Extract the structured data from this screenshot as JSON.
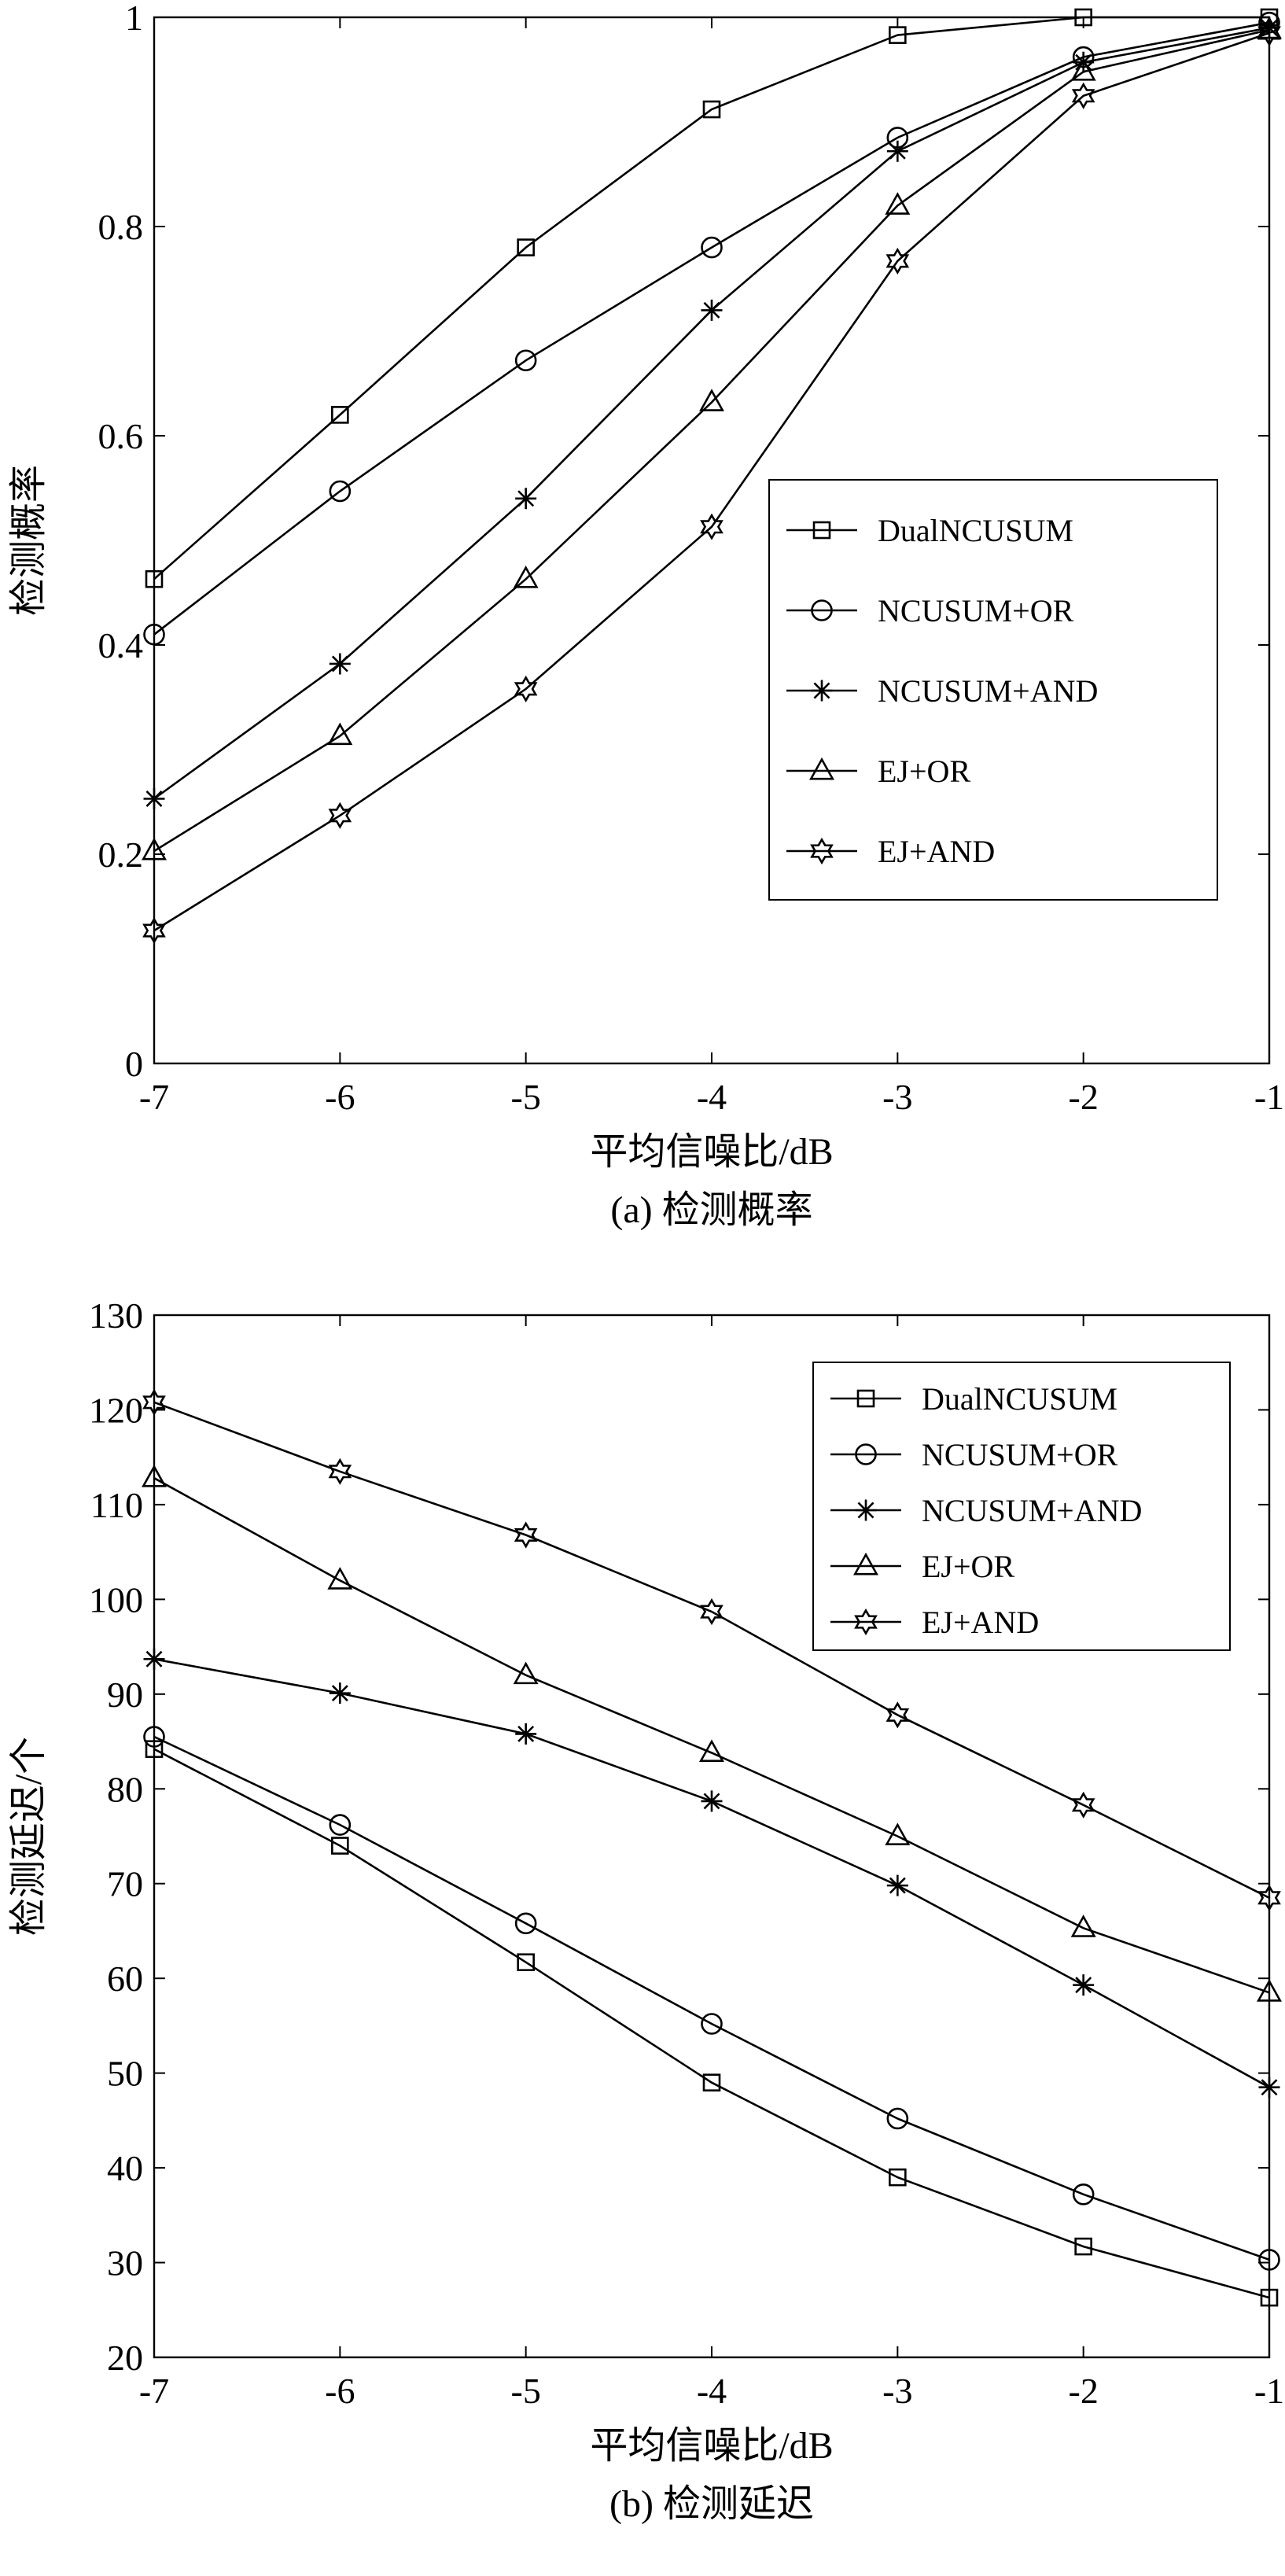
{
  "chart_data": [
    {
      "type": "line",
      "title": "",
      "caption": "(a) 检测概率",
      "xlabel": "平均信噪比/dB",
      "ylabel": "检测概率",
      "x": [
        -7,
        -6,
        -5,
        -4,
        -3,
        -2,
        -1
      ],
      "xlim": [
        -7,
        -1
      ],
      "ylim": [
        0,
        1
      ],
      "xticks": [
        "-7",
        "-6",
        "-5",
        "-4",
        "-3",
        "-2",
        "-1"
      ],
      "yticks": [
        "0",
        "0.2",
        "0.4",
        "0.6",
        "0.8",
        "1"
      ],
      "grid": false,
      "legend_position": "center-right",
      "series": [
        {
          "name": "DualNCUSUM",
          "marker": "square",
          "values": [
            0.463,
            0.62,
            0.78,
            0.912,
            0.983,
            1.0,
            1.0
          ]
        },
        {
          "name": "NCUSUM+OR",
          "marker": "circle",
          "values": [
            0.41,
            0.547,
            0.672,
            0.78,
            0.885,
            0.962,
            0.995
          ]
        },
        {
          "name": "NCUSUM+AND",
          "marker": "asterisk",
          "values": [
            0.253,
            0.382,
            0.54,
            0.72,
            0.872,
            0.957,
            0.99
          ]
        },
        {
          "name": "EJ+OR",
          "marker": "triangle",
          "values": [
            0.203,
            0.313,
            0.463,
            0.632,
            0.82,
            0.948,
            0.988
          ]
        },
        {
          "name": "EJ+AND",
          "marker": "hexagram",
          "values": [
            0.127,
            0.237,
            0.358,
            0.513,
            0.767,
            0.925,
            0.985
          ]
        }
      ]
    },
    {
      "type": "line",
      "title": "",
      "caption": "(b) 检测延迟",
      "xlabel": "平均信噪比/dB",
      "ylabel": "检测延迟/个",
      "x": [
        -7,
        -6,
        -5,
        -4,
        -3,
        -2,
        -1
      ],
      "xlim": [
        -7,
        -1
      ],
      "ylim": [
        20,
        130
      ],
      "xticks": [
        "-7",
        "-6",
        "-5",
        "-4",
        "-3",
        "-2",
        "-1"
      ],
      "yticks": [
        "20",
        "30",
        "40",
        "50",
        "60",
        "70",
        "80",
        "90",
        "100",
        "110",
        "120",
        "130"
      ],
      "grid": false,
      "legend_position": "top-right",
      "series": [
        {
          "name": "DualNCUSUM",
          "marker": "square",
          "values": [
            84.2,
            74,
            61.7,
            49,
            39,
            31.7,
            26.3
          ]
        },
        {
          "name": "NCUSUM+OR",
          "marker": "circle",
          "values": [
            85.5,
            76.2,
            65.8,
            55.2,
            45.2,
            37.2,
            30.3
          ]
        },
        {
          "name": "NCUSUM+AND",
          "marker": "asterisk",
          "values": [
            93.7,
            90.1,
            85.8,
            78.7,
            69.8,
            59.3,
            48.5
          ]
        },
        {
          "name": "EJ+OR",
          "marker": "triangle",
          "values": [
            112.8,
            102,
            92,
            83.8,
            75,
            65.3,
            58.5
          ]
        },
        {
          "name": "EJ+AND",
          "marker": "hexagram",
          "values": [
            120.8,
            113.5,
            106.8,
            98.7,
            87.8,
            78.3,
            68.5
          ]
        }
      ]
    }
  ]
}
